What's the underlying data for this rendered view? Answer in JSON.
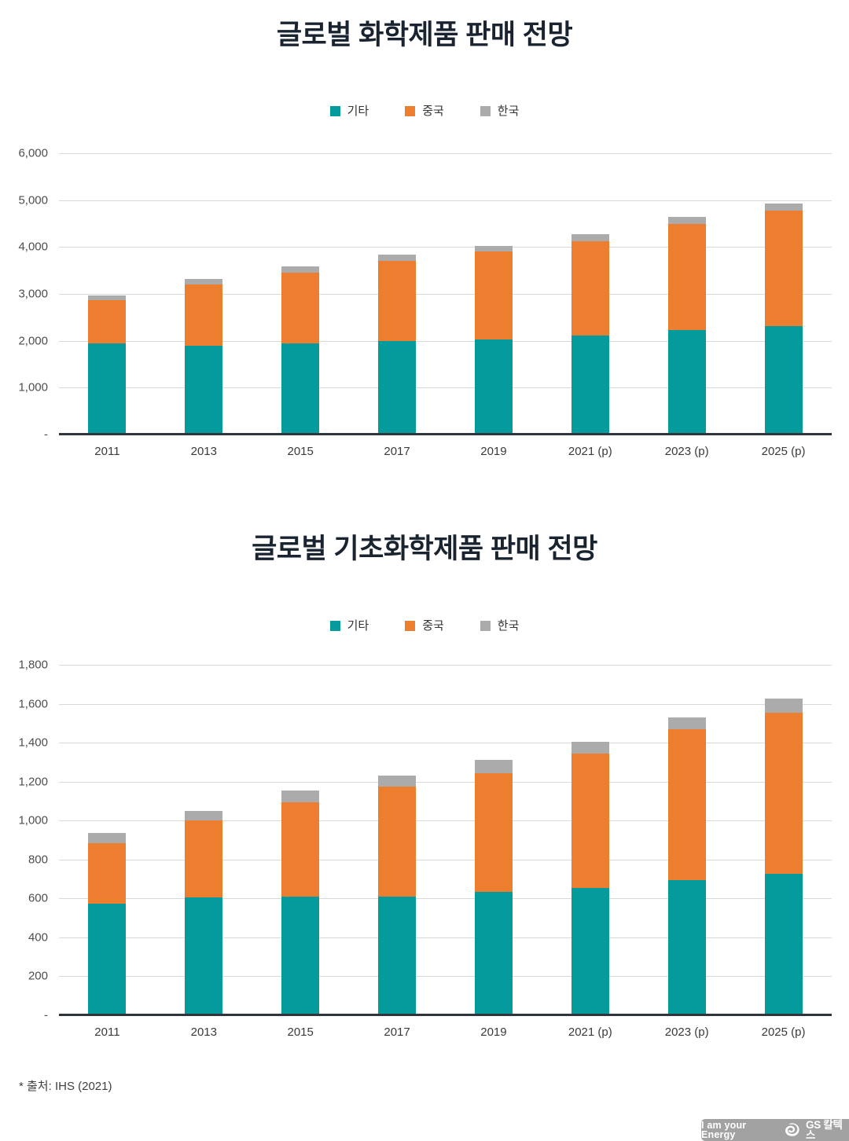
{
  "footer": {
    "source_note": "* 출처: IHS (2021)"
  },
  "brand_bar": {
    "slogan": "I am your Energy",
    "brand": "GS 칼텍스",
    "bg": "#a2a2a2",
    "text_color": "#ffffff"
  },
  "colors": {
    "title": "#1a2430",
    "gridline": "#d9d9d9",
    "axis_line": "#2f353b",
    "tick_label": "#4e4e4e"
  },
  "chart_data": [
    {
      "type": "bar",
      "stacked": true,
      "title": "글로벌 화학제품 판매 전망",
      "categories": [
        "2011",
        "2013",
        "2015",
        "2017",
        "2019",
        "2021 (p)",
        "2023 (p)",
        "2025 (p)"
      ],
      "series": [
        {
          "name": "기타",
          "color": "#059a9b",
          "values": [
            1940,
            1900,
            1950,
            1990,
            2030,
            2120,
            2230,
            2310
          ]
        },
        {
          "name": "중국",
          "color": "#ee7e2f",
          "values": [
            930,
            1300,
            1500,
            1710,
            1870,
            2010,
            2270,
            2470
          ]
        },
        {
          "name": "한국",
          "color": "#ababab",
          "values": [
            90,
            120,
            130,
            140,
            130,
            140,
            150,
            150
          ]
        }
      ],
      "y_max": 6000,
      "y_tick_step": 1000,
      "y_ticks": [
        "6,000",
        "5,000",
        "4,000",
        "3,000",
        "2,000",
        "1,000",
        "-"
      ],
      "zero_label": "-",
      "grid": true,
      "legend_position": "top"
    },
    {
      "type": "bar",
      "stacked": true,
      "title": "글로벌 기초화학제품 판매 전망",
      "categories": [
        "2011",
        "2013",
        "2015",
        "2017",
        "2019",
        "2021 (p)",
        "2023 (p)",
        "2025 (p)"
      ],
      "series": [
        {
          "name": "기타",
          "color": "#059a9b",
          "values": [
            575,
            605,
            610,
            610,
            635,
            655,
            695,
            725
          ]
        },
        {
          "name": "중국",
          "color": "#ee7e2f",
          "values": [
            310,
            395,
            485,
            565,
            610,
            690,
            775,
            830
          ]
        },
        {
          "name": "한국",
          "color": "#ababab",
          "values": [
            50,
            50,
            60,
            55,
            65,
            60,
            60,
            70
          ]
        }
      ],
      "y_max": 1800,
      "y_tick_step": 200,
      "y_ticks": [
        "1,800",
        "1,600",
        "1,400",
        "1,200",
        "1,000",
        "800",
        "600",
        "400",
        "200",
        "-"
      ],
      "zero_label": "-",
      "grid": true,
      "legend_position": "top"
    }
  ]
}
